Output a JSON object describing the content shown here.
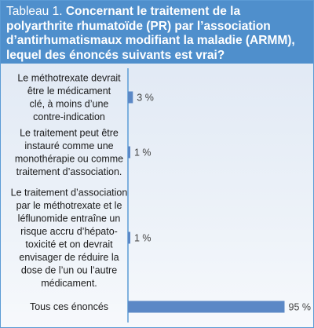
{
  "figure": {
    "label": "Tableau 1.",
    "title": "Concernant le traitement de la polyarthrite rhumatoïde (PR) par l’association d’antirhumatismaux modifiant la maladie (ARMM), lequel des énoncés suivants est vrai?"
  },
  "colors": {
    "header_bg": "#4f8fcc",
    "bar_fill": "#5b88c6",
    "axis_line": "#5b9bd5"
  },
  "chart_data": {
    "type": "bar",
    "orientation": "horizontal",
    "unit": "%",
    "xlim": [
      0,
      100
    ],
    "grid": false,
    "categories": [
      "Le méthotrexate devrait être le médicament clé, à moins d’une contre-indication",
      "Le traitement peut être instauré comme une monothérapie ou comme traitement d’association.",
      "Le traitement d’association par le méthotrexate et le léflunomide entraîne un risque accru d’hépato-toxicité et on devrait envisager de réduire la dose de l’un ou l’autre médicament.",
      "Tous ces énoncés"
    ],
    "category_lines": [
      [
        "Le méthotrexate devrait",
        "être le médicament",
        "clé, à moins d’une",
        "contre-indication"
      ],
      [
        "Le traitement peut être",
        "instauré comme une",
        "monothérapie ou comme",
        "traitement d’association."
      ],
      [
        "Le traitement d’association",
        "par le méthotrexate et le",
        "léflunomide entraîne un",
        "risque accru d’hépato-",
        "toxicité et on devrait",
        "envisager de réduire la",
        "dose de l’un ou l’autre",
        "médicament."
      ],
      [
        "Tous ces énoncés"
      ]
    ],
    "values": [
      3,
      1,
      1,
      95
    ],
    "value_labels": [
      "3 %",
      "1 %",
      "1 %",
      "95 %"
    ]
  }
}
